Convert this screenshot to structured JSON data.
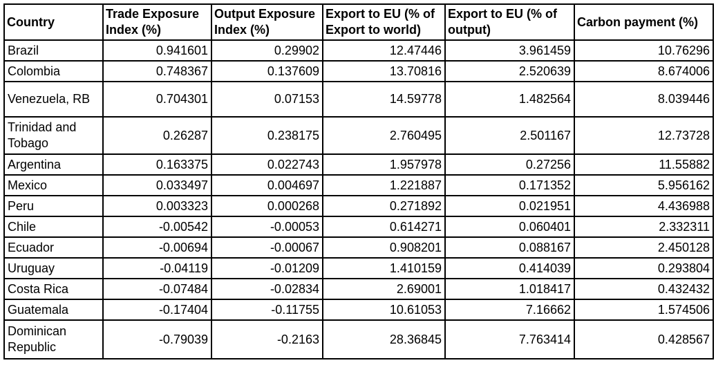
{
  "colors": {
    "background": "#ffffff",
    "border": "#000000",
    "text": "#000000"
  },
  "chart_data": {
    "type": "table",
    "columns": [
      "Country",
      "Trade Exposure Index (%)",
      "Output Exposure Index (%)",
      "Export to EU (% of Export to world)",
      "Export to EU (% of output)",
      "Carbon payment (%)"
    ],
    "rows": [
      [
        "Brazil",
        "0.941601",
        "0.29902",
        "12.47446",
        "3.961459",
        "10.76296"
      ],
      [
        "Colombia",
        "0.748367",
        "0.137609",
        "13.70816",
        "2.520639",
        "8.674006"
      ],
      [
        "Venezuela, RB",
        "0.704301",
        "0.07153",
        "14.59778",
        "1.482564",
        "8.039446"
      ],
      [
        "Trinidad and Tobago",
        "0.26287",
        "0.238175",
        "2.760495",
        "2.501167",
        "12.73728"
      ],
      [
        "Argentina",
        "0.163375",
        "0.022743",
        "1.957978",
        "0.27256",
        "11.55882"
      ],
      [
        "Mexico",
        "0.033497",
        "0.004697",
        "1.221887",
        "0.171352",
        "5.956162"
      ],
      [
        "Peru",
        "0.003323",
        "0.000268",
        "0.271892",
        "0.021951",
        "4.436988"
      ],
      [
        "Chile",
        "-0.00542",
        "-0.00053",
        "0.614271",
        "0.060401",
        "2.332311"
      ],
      [
        "Ecuador",
        "-0.00694",
        "-0.00067",
        "0.908201",
        "0.088167",
        "2.450128"
      ],
      [
        "Uruguay",
        "-0.04119",
        "-0.01209",
        "1.410159",
        "0.414039",
        "0.293804"
      ],
      [
        "Costa Rica",
        "-0.07484",
        "-0.02834",
        "2.69001",
        "1.018417",
        "0.432432"
      ],
      [
        "Guatemala",
        "-0.17404",
        "-0.11755",
        "10.61053",
        "7.16662",
        "1.574506"
      ],
      [
        "Dominican Republic",
        "-0.79039",
        "-0.2163",
        "28.36845",
        "7.763414",
        "0.428567"
      ]
    ]
  }
}
